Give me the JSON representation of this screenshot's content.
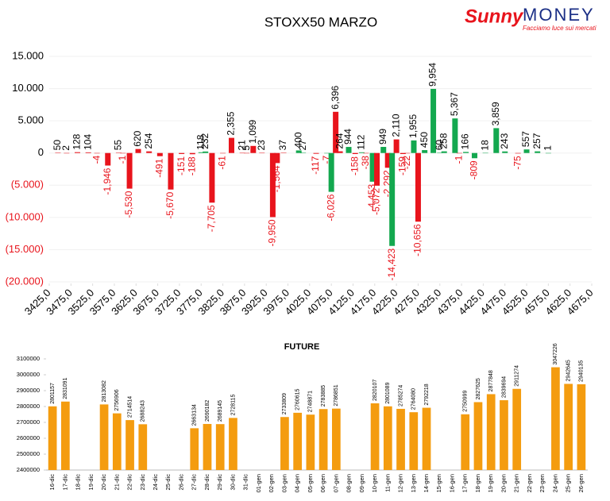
{
  "logo": {
    "brand": "Sunny",
    "brand2": "MONEY",
    "tagline": "Facciamo luce sui mercati"
  },
  "chart_data": [
    {
      "type": "bar",
      "title": "STOXX50 MARZO",
      "x": [
        3445,
        3465,
        3490,
        3515,
        3535,
        3560,
        3585,
        3595,
        3610,
        3630,
        3655,
        3680,
        3705,
        3730,
        3755,
        3775,
        3785,
        3800,
        3825,
        3845,
        3870,
        3880,
        3895,
        3915,
        3940,
        3950,
        3965,
        4000,
        4010,
        4040,
        4065,
        4075,
        4085,
        4095,
        4115,
        4130,
        4145,
        4155,
        4170,
        4180,
        4195,
        4205,
        4215,
        4225,
        4240,
        4250,
        4265,
        4275,
        4290,
        4310,
        4325,
        4335,
        4360,
        4370,
        4385,
        4405,
        4430,
        4455,
        4475,
        4505,
        4525,
        4550,
        4575
      ],
      "values": [
        50,
        2,
        128,
        104,
        -4,
        -1946,
        55,
        -1,
        -5530,
        620,
        254,
        -491,
        -5670,
        -151,
        -188,
        118,
        232,
        -7705,
        -61,
        2355,
        21,
        5,
        1099,
        23,
        -9950,
        -1564,
        37,
        400,
        27,
        -117,
        -7,
        -6026,
        6396,
        264,
        944,
        -158,
        112,
        -38,
        -4453,
        -5072,
        949,
        -2292,
        -14423,
        2110,
        -159,
        -22,
        1955,
        -10656,
        450,
        9954,
        60,
        258,
        5367,
        -1,
        166,
        -809,
        18,
        3859,
        243,
        -75,
        557,
        257,
        1
      ],
      "value_labels": [
        "50",
        "2",
        "128",
        "104",
        "-4",
        "-1,946",
        "55",
        "-1",
        "-5,530",
        "620",
        "254",
        "-491",
        "-5,670",
        "-151",
        "-188",
        "118",
        "232",
        "-7,705",
        "-61",
        "2,355",
        "21",
        "5",
        "1,099",
        "23",
        "-9,950",
        "-1,564",
        "37",
        "400",
        "27",
        "-117",
        "-7",
        "-6,026",
        "6,396",
        "264",
        "944",
        "-158",
        "112",
        "-38",
        "-4,453",
        "-5,072",
        "949",
        "-2,292",
        "-14,423",
        "2,110",
        "-159",
        "-22",
        "1,955",
        "-10,656",
        "450",
        "9,954",
        "60",
        "258",
        "5,367",
        "-1",
        "166",
        "-809",
        "18",
        "3,859",
        "243",
        "-75",
        "557",
        "257",
        "1"
      ],
      "colors": [
        "#e8141c",
        "#e8141c",
        "#e8141c",
        "#e8141c",
        "#e8141c",
        "#e8141c",
        "#e8141c",
        "#e8141c",
        "#e8141c",
        "#e8141c",
        "#e8141c",
        "#e8141c",
        "#e8141c",
        "#e8141c",
        "#e8141c",
        "#13a84f",
        "#13a84f",
        "#e8141c",
        "#e8141c",
        "#e8141c",
        "#e8141c",
        "#e8141c",
        "#e8141c",
        "#e8141c",
        "#e8141c",
        "#e8141c",
        "#e8141c",
        "#13a84f",
        "#13a84f",
        "#e8141c",
        "#13a84f",
        "#13a84f",
        "#e8141c",
        "#e8141c",
        "#13a84f",
        "#e8141c",
        "#13a84f",
        "#e8141c",
        "#13a84f",
        "#e8141c",
        "#13a84f",
        "#e8141c",
        "#13a84f",
        "#e8141c",
        "#e8141c",
        "#e8141c",
        "#13a84f",
        "#e8141c",
        "#13a84f",
        "#13a84f",
        "#13a84f",
        "#13a84f",
        "#13a84f",
        "#e8141c",
        "#13a84f",
        "#13a84f",
        "#13a84f",
        "#13a84f",
        "#13a84f",
        "#e8141c",
        "#13a84f",
        "#13a84f",
        "#13a84f"
      ],
      "xlim": [
        3425,
        4675
      ],
      "xticks": [
        {
          "value": 3425,
          "label": "3425,0"
        },
        {
          "value": 3475,
          "label": "3475,0"
        },
        {
          "value": 3525,
          "label": "3525,0"
        },
        {
          "value": 3575,
          "label": "3575,0"
        },
        {
          "value": 3625,
          "label": "3625,0"
        },
        {
          "value": 3675,
          "label": "3675,0"
        },
        {
          "value": 3725,
          "label": "3725,0"
        },
        {
          "value": 3775,
          "label": "3775,0"
        },
        {
          "value": 3825,
          "label": "3825,0"
        },
        {
          "value": 3875,
          "label": "3875,0"
        },
        {
          "value": 3925,
          "label": "3925,0"
        },
        {
          "value": 3975,
          "label": "3975,0"
        },
        {
          "value": 4025,
          "label": "4025,0"
        },
        {
          "value": 4075,
          "label": "4075,0"
        },
        {
          "value": 4125,
          "label": "4125,0"
        },
        {
          "value": 4175,
          "label": "4175,0"
        },
        {
          "value": 4225,
          "label": "4225,0"
        },
        {
          "value": 4275,
          "label": "4275,0"
        },
        {
          "value": 4325,
          "label": "4325,0"
        },
        {
          "value": 4375,
          "label": "4375,0"
        },
        {
          "value": 4425,
          "label": "4425,0"
        },
        {
          "value": 4475,
          "label": "4475,0"
        },
        {
          "value": 4525,
          "label": "4525,0"
        },
        {
          "value": 4575,
          "label": "4575,0"
        },
        {
          "value": 4625,
          "label": "4625,0"
        },
        {
          "value": 4675,
          "label": "4675,0"
        }
      ],
      "ylim": [
        -20000,
        15000
      ],
      "yticks": [
        {
          "value": 15000,
          "label": "15.000"
        },
        {
          "value": 10000,
          "label": "10.000"
        },
        {
          "value": 5000,
          "label": "5.000"
        },
        0,
        {
          "value": -5000,
          "label": "(5.000)"
        },
        {
          "value": -10000,
          "label": "(10.000)"
        },
        {
          "value": -15000,
          "label": "(15.000)"
        },
        {
          "value": -20000,
          "label": "(20.000)"
        }
      ],
      "grid": true
    },
    {
      "type": "bar",
      "title": "FUTURE",
      "color": "#f49c0f",
      "categories": [
        "16-dic",
        "17-dic",
        "18-dic",
        "19-dic",
        "20-dic",
        "21-dic",
        "22-dic",
        "23-dic",
        "24-dic",
        "25-dic",
        "26-dic",
        "27-dic",
        "28-dic",
        "29-dic",
        "30-dic",
        "31-dic",
        "01-gen",
        "02-gen",
        "03-gen",
        "04-gen",
        "05-gen",
        "06-gen",
        "07-gen",
        "08-gen",
        "09-gen",
        "10-gen",
        "11-gen",
        "12-gen",
        "13-gen",
        "14-gen",
        "15-gen",
        "16-gen",
        "17-gen",
        "18-gen",
        "19-gen",
        "20-gen",
        "21-gen",
        "22-gen",
        "23-gen",
        "24-gen",
        "25-gen",
        "26-gen"
      ],
      "values": [
        2801157,
        2831091,
        null,
        null,
        2813082,
        2756906,
        2714514,
        2688243,
        null,
        null,
        null,
        2663134,
        2690182,
        2689145,
        2728115,
        null,
        null,
        null,
        2733809,
        2760615,
        2748871,
        2783885,
        2786851,
        null,
        null,
        2820107,
        2801089,
        2785274,
        2764080,
        2792218,
        null,
        null,
        2750999,
        2827625,
        2877848,
        2839694,
        2911274,
        null,
        null,
        3047226,
        2942645,
        2940135
      ],
      "ylim": [
        2400000,
        3100000
      ],
      "yticks": [
        2400000,
        2500000,
        2600000,
        2700000,
        2800000,
        2900000,
        3000000,
        3100000
      ]
    }
  ]
}
